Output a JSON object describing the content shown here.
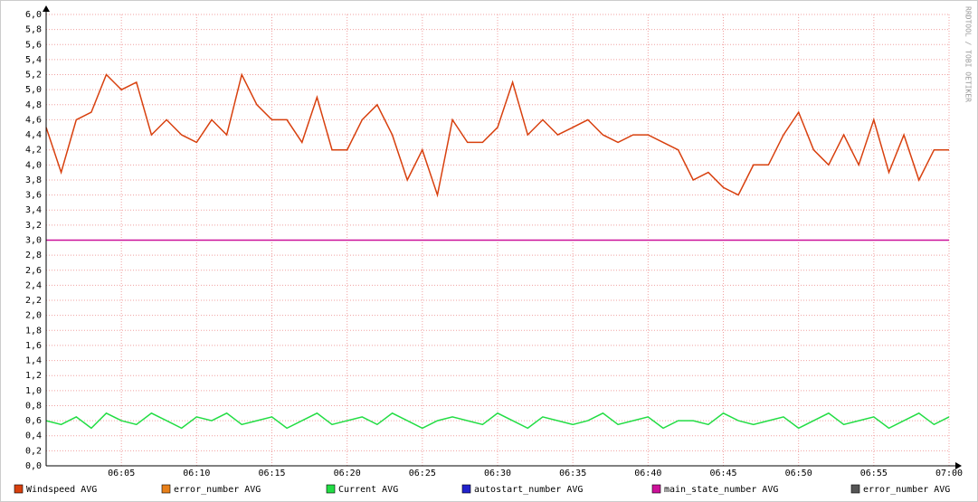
{
  "chart_data": {
    "type": "line",
    "watermark": "RRDTOOL / TOBI OETIKER",
    "x": [
      "06:00",
      "06:01",
      "06:02",
      "06:03",
      "06:04",
      "06:05",
      "06:06",
      "06:07",
      "06:08",
      "06:09",
      "06:10",
      "06:11",
      "06:12",
      "06:13",
      "06:14",
      "06:15",
      "06:16",
      "06:17",
      "06:18",
      "06:19",
      "06:20",
      "06:21",
      "06:22",
      "06:23",
      "06:24",
      "06:25",
      "06:26",
      "06:27",
      "06:28",
      "06:29",
      "06:30",
      "06:31",
      "06:32",
      "06:33",
      "06:34",
      "06:35",
      "06:36",
      "06:37",
      "06:38",
      "06:39",
      "06:40",
      "06:41",
      "06:42",
      "06:43",
      "06:44",
      "06:45",
      "06:46",
      "06:47",
      "06:48",
      "06:49",
      "06:50",
      "06:51",
      "06:52",
      "06:53",
      "06:54",
      "06:55",
      "06:56",
      "06:57",
      "06:58",
      "06:59",
      "07:00"
    ],
    "xlim": [
      "06:00",
      "07:00"
    ],
    "xticks": [
      "06:05",
      "06:10",
      "06:15",
      "06:20",
      "06:25",
      "06:30",
      "06:35",
      "06:40",
      "06:45",
      "06:50",
      "06:55",
      "07:00"
    ],
    "ylim": [
      0,
      6
    ],
    "yticks": [
      {
        "value": 0,
        "label": "0,0"
      },
      {
        "value": 0.2,
        "label": "0,2"
      },
      {
        "value": 0.4,
        "label": "0,4"
      },
      {
        "value": 0.6,
        "label": "0,6"
      },
      {
        "value": 0.8,
        "label": "0,8"
      },
      {
        "value": 1,
        "label": "1,0"
      },
      {
        "value": 1.2,
        "label": "1,2"
      },
      {
        "value": 1.4,
        "label": "1,4"
      },
      {
        "value": 1.6,
        "label": "1,6"
      },
      {
        "value": 1.8,
        "label": "1,8"
      },
      {
        "value": 2,
        "label": "2,0"
      },
      {
        "value": 2.2,
        "label": "2,2"
      },
      {
        "value": 2.4,
        "label": "2,4"
      },
      {
        "value": 2.6,
        "label": "2,6"
      },
      {
        "value": 2.8,
        "label": "2,8"
      },
      {
        "value": 3,
        "label": "3,0"
      },
      {
        "value": 3.2,
        "label": "3,2"
      },
      {
        "value": 3.4,
        "label": "3,4"
      },
      {
        "value": 3.6,
        "label": "3,6"
      },
      {
        "value": 3.8,
        "label": "3,8"
      },
      {
        "value": 4,
        "label": "4,0"
      },
      {
        "value": 4.2,
        "label": "4,2"
      },
      {
        "value": 4.4,
        "label": "4,4"
      },
      {
        "value": 4.6,
        "label": "4,6"
      },
      {
        "value": 4.8,
        "label": "4,8"
      },
      {
        "value": 5,
        "label": "5,0"
      },
      {
        "value": 5.2,
        "label": "5,2"
      },
      {
        "value": 5.4,
        "label": "5,4"
      },
      {
        "value": 5.6,
        "label": "5,6"
      },
      {
        "value": 5.8,
        "label": "5,8"
      },
      {
        "value": 6,
        "label": "6,0"
      }
    ],
    "grid": true,
    "series": [
      {
        "name": "Windspeed AVG",
        "color": "#d8400e",
        "values": [
          4.5,
          3.9,
          4.6,
          4.7,
          5.2,
          5.0,
          5.1,
          4.4,
          4.6,
          4.4,
          4.3,
          4.6,
          4.4,
          5.2,
          4.8,
          4.6,
          4.6,
          4.3,
          4.9,
          4.2,
          4.2,
          4.6,
          4.8,
          4.4,
          3.8,
          4.2,
          3.6,
          4.6,
          4.3,
          4.3,
          4.5,
          5.1,
          4.4,
          4.6,
          4.4,
          4.5,
          4.6,
          4.4,
          4.3,
          4.4,
          4.4,
          4.3,
          4.2,
          3.8,
          3.9,
          3.7,
          3.6,
          4.0,
          4.0,
          4.4,
          4.7,
          4.2,
          4.0,
          4.4,
          4.0,
          4.6,
          3.9,
          4.4,
          3.8,
          4.2,
          4.2
        ]
      },
      {
        "name": "error_number AVG",
        "color": "#e8801a",
        "values": [
          null,
          null,
          null,
          null,
          null,
          null,
          null,
          null,
          null,
          null,
          null,
          null,
          null,
          null,
          null,
          null,
          null,
          null,
          null,
          null,
          null,
          null,
          null,
          null,
          null,
          null,
          null,
          null,
          null,
          null,
          null,
          null,
          null,
          null,
          null,
          null,
          null,
          null,
          null,
          null,
          null,
          null,
          null,
          null,
          null,
          null,
          null,
          null,
          null,
          null,
          null,
          null,
          null,
          null,
          null,
          null,
          null,
          null,
          null,
          null,
          null
        ]
      },
      {
        "name": "Current AVG",
        "color": "#22dd44",
        "values": [
          0.6,
          0.55,
          0.65,
          0.5,
          0.7,
          0.6,
          0.55,
          0.7,
          0.6,
          0.5,
          0.65,
          0.6,
          0.7,
          0.55,
          0.6,
          0.65,
          0.5,
          0.6,
          0.7,
          0.55,
          0.6,
          0.65,
          0.55,
          0.7,
          0.6,
          0.5,
          0.6,
          0.65,
          0.6,
          0.55,
          0.7,
          0.6,
          0.5,
          0.65,
          0.6,
          0.55,
          0.6,
          0.7,
          0.55,
          0.6,
          0.65,
          0.5,
          0.6,
          0.6,
          0.55,
          0.7,
          0.6,
          0.55,
          0.6,
          0.65,
          0.5,
          0.6,
          0.7,
          0.55,
          0.6,
          0.65,
          0.5,
          0.6,
          0.7,
          0.55,
          0.65
        ]
      },
      {
        "name": "autostart_number AVG",
        "color": "#2222cc",
        "values": [
          null,
          null,
          null,
          null,
          null,
          null,
          null,
          null,
          null,
          null,
          null,
          null,
          null,
          null,
          null,
          null,
          null,
          null,
          null,
          null,
          null,
          null,
          null,
          null,
          null,
          null,
          null,
          null,
          null,
          null,
          null,
          null,
          null,
          null,
          null,
          null,
          null,
          null,
          null,
          null,
          null,
          null,
          null,
          null,
          null,
          null,
          null,
          null,
          null,
          null,
          null,
          null,
          null,
          null,
          null,
          null,
          null,
          null,
          null,
          null,
          null
        ]
      },
      {
        "name": "main_state_number AVG",
        "color": "#cc1199",
        "values": [
          3,
          3,
          3,
          3,
          3,
          3,
          3,
          3,
          3,
          3,
          3,
          3,
          3,
          3,
          3,
          3,
          3,
          3,
          3,
          3,
          3,
          3,
          3,
          3,
          3,
          3,
          3,
          3,
          3,
          3,
          3,
          3,
          3,
          3,
          3,
          3,
          3,
          3,
          3,
          3,
          3,
          3,
          3,
          3,
          3,
          3,
          3,
          3,
          3,
          3,
          3,
          3,
          3,
          3,
          3,
          3,
          3,
          3,
          3,
          3,
          3
        ]
      },
      {
        "name": "error_number AVG",
        "color": "#555555",
        "values": [
          null,
          null,
          null,
          null,
          null,
          null,
          null,
          null,
          null,
          null,
          null,
          null,
          null,
          null,
          null,
          null,
          null,
          null,
          null,
          null,
          null,
          null,
          null,
          null,
          null,
          null,
          null,
          null,
          null,
          null,
          null,
          null,
          null,
          null,
          null,
          null,
          null,
          null,
          null,
          null,
          null,
          null,
          null,
          null,
          null,
          null,
          null,
          null,
          null,
          null,
          null,
          null,
          null,
          null,
          null,
          null,
          null,
          null,
          null,
          null,
          null
        ]
      }
    ]
  }
}
